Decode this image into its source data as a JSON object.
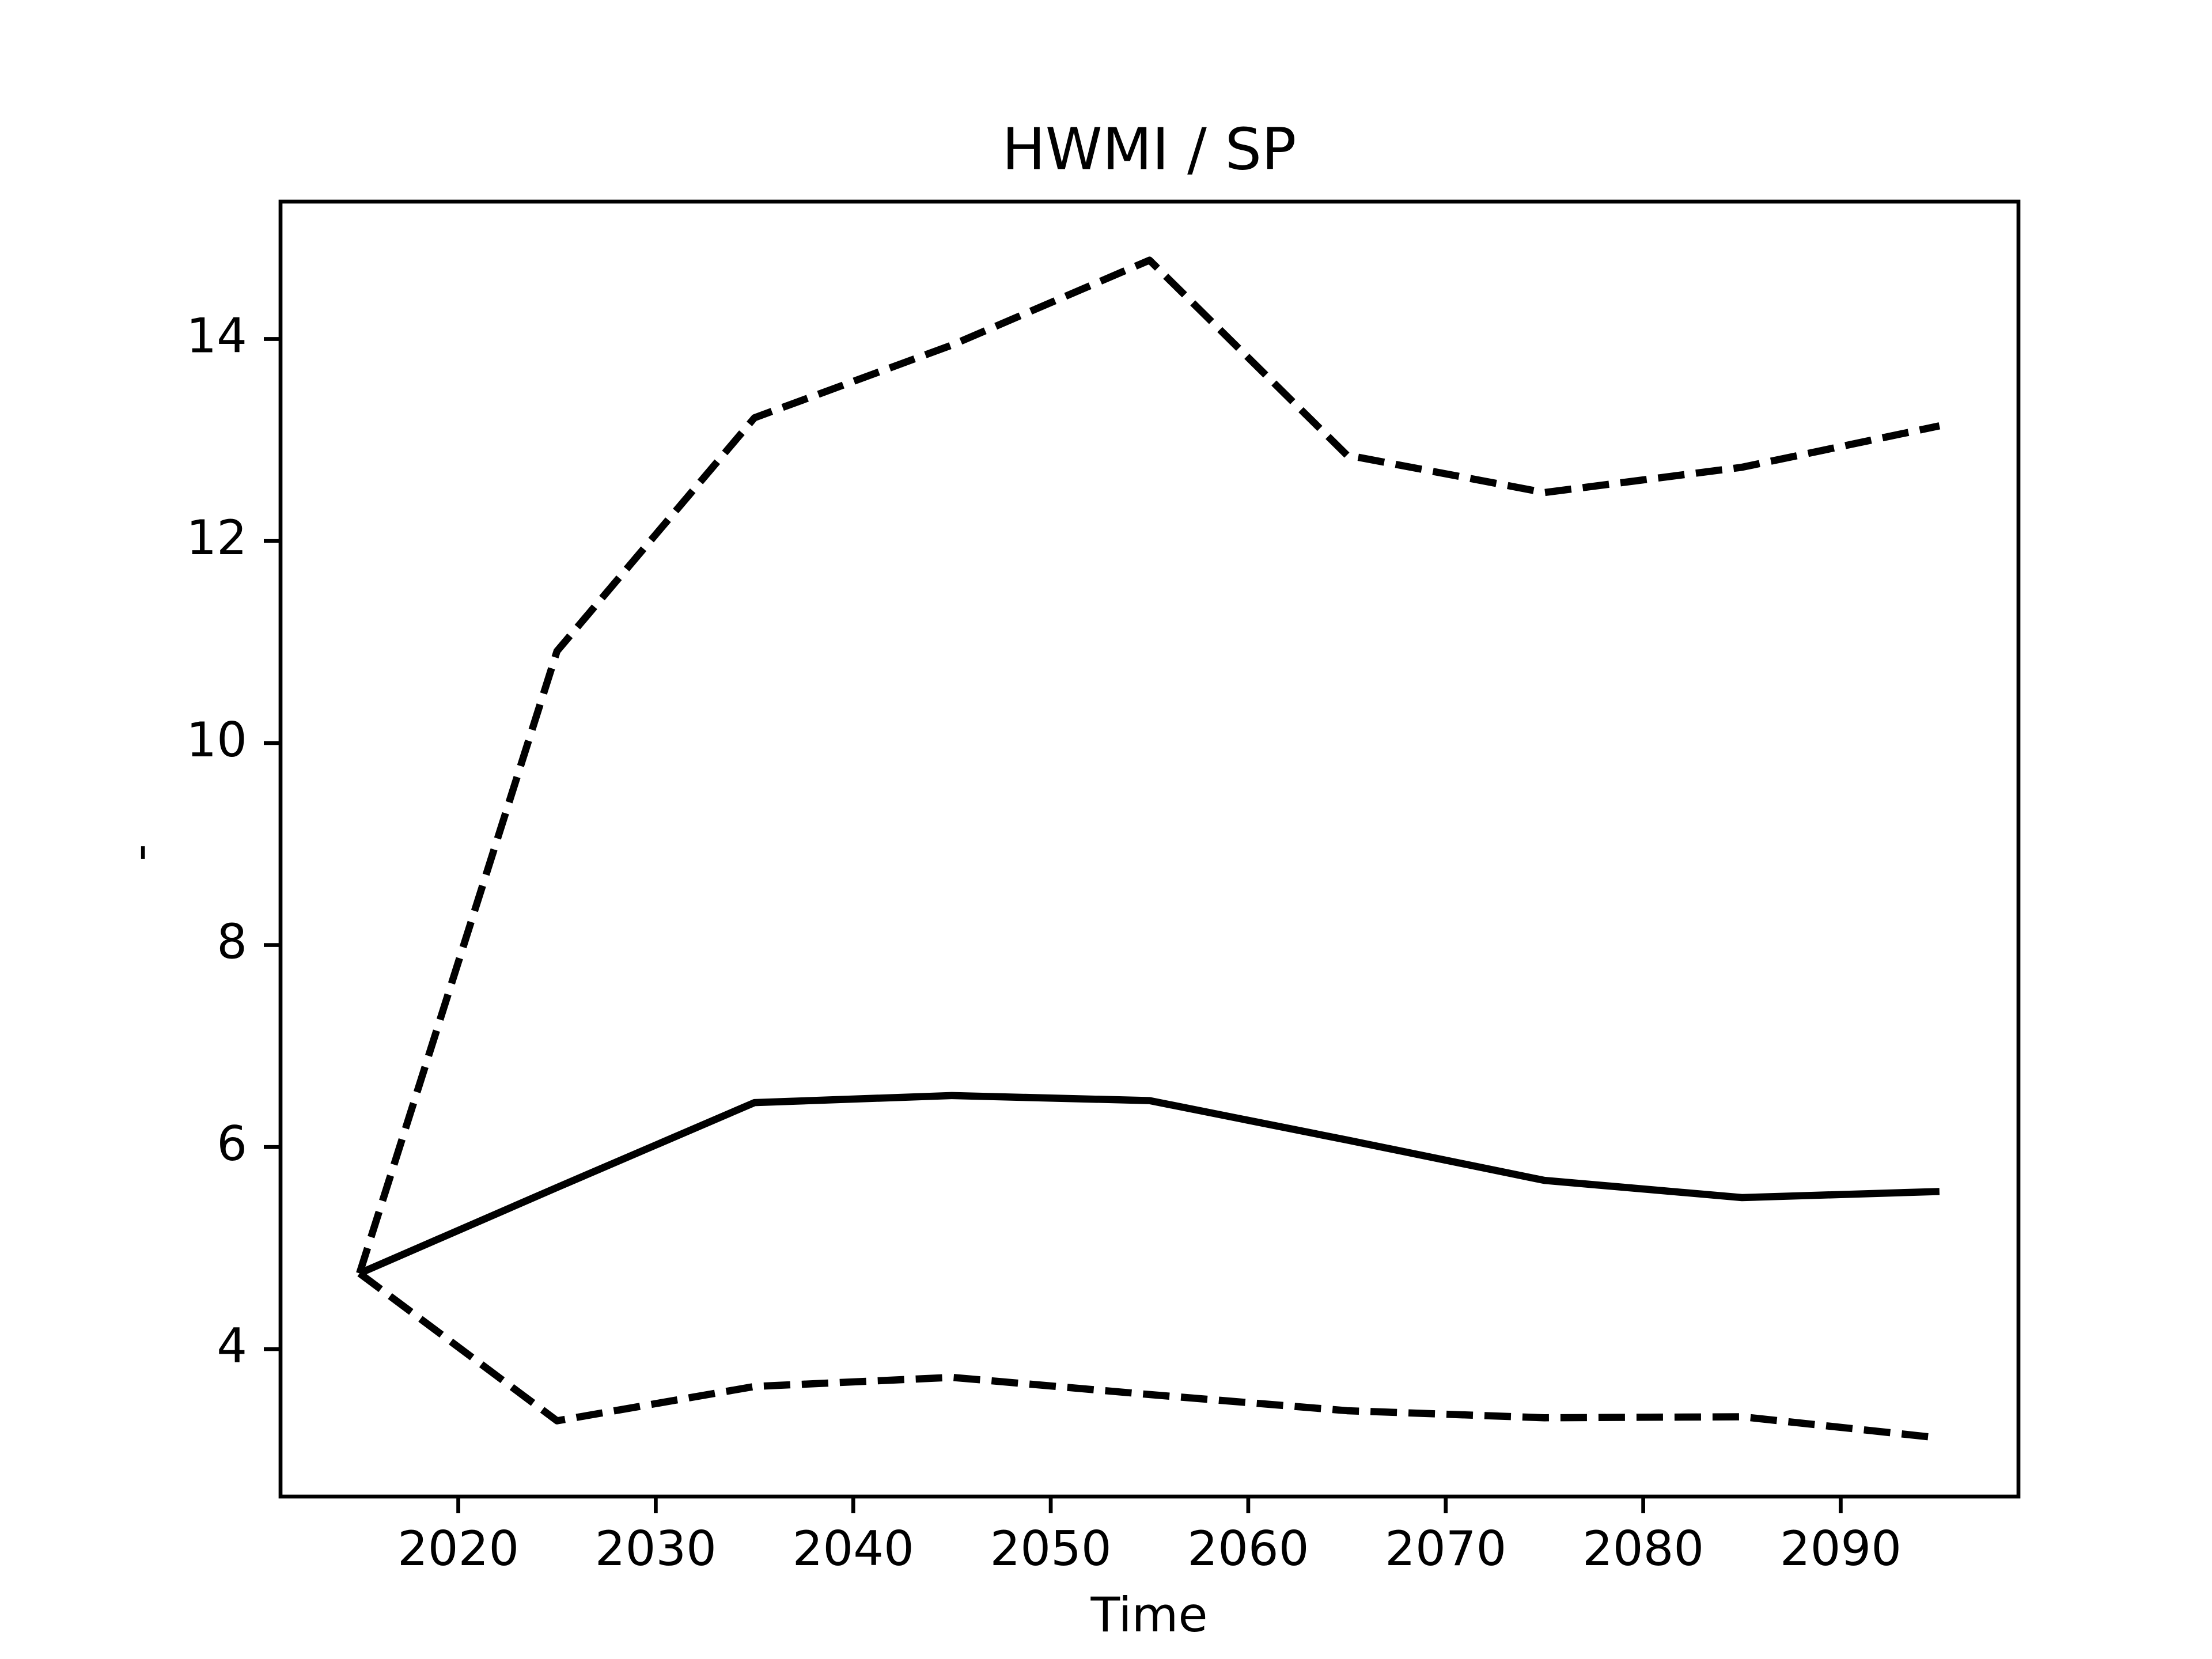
{
  "chart_data": {
    "type": "line",
    "title": "HWMI / SP",
    "xlabel": "Time",
    "ylabel": "-",
    "x": [
      2015,
      2025,
      2035,
      2045,
      2055,
      2065,
      2075,
      2085,
      2095
    ],
    "series": [
      {
        "color": "#000000",
        "dash": false,
        "values": [
          4.75,
          5.6,
          6.44,
          6.51,
          6.46,
          6.07,
          5.67,
          5.5,
          5.56
        ]
      },
      {
        "color": "#000000",
        "dash": true,
        "values": [
          4.75,
          10.91,
          13.22,
          13.94,
          14.78,
          12.85,
          12.48,
          12.73,
          13.14
        ]
      },
      {
        "color": "#000000",
        "dash": true,
        "values": [
          4.75,
          3.29,
          3.63,
          3.72,
          3.55,
          3.39,
          3.32,
          3.33,
          3.12
        ]
      }
    ],
    "xlim": [
      2011,
      2099
    ],
    "xticks": [
      2020,
      2030,
      2040,
      2050,
      2060,
      2070,
      2080,
      2090
    ],
    "ylim": [
      2.54,
      15.36
    ],
    "yticks": [
      4,
      6,
      8,
      10,
      12,
      14
    ],
    "grid": false
  }
}
